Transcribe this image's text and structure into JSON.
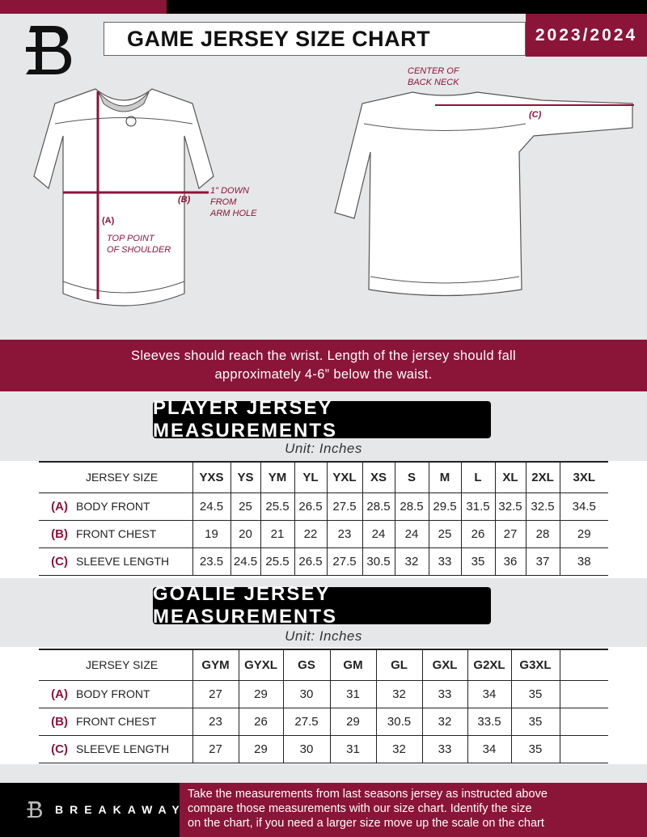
{
  "header": {
    "title": "GAME JERSEY SIZE CHART",
    "season": "2023/2024"
  },
  "diagram": {
    "front": {
      "a_label": "(A)",
      "a_note": [
        "TOP POINT",
        "OF SHOULDER"
      ],
      "b_label": "(B)",
      "b_note": [
        "1\" DOWN",
        "FROM",
        "ARM HOLE"
      ]
    },
    "back": {
      "c_label": "(C)",
      "c_note": [
        "CENTER OF",
        "BACK NECK"
      ]
    }
  },
  "instruction": [
    "Sleeves should reach the wrist. Length of the jersey should fall",
    "approximately 4-6” below the waist."
  ],
  "player": {
    "title": "PLAYER JERSEY MEASUREMENTS",
    "unit": "Unit: Inches",
    "header_label": "JERSEY SIZE",
    "sizes": [
      "YXS",
      "YS",
      "YM",
      "YL",
      "YXL",
      "XS",
      "S",
      "M",
      "L",
      "XL",
      "2XL",
      "3XL"
    ],
    "rows": [
      {
        "letter": "(A)",
        "label": "BODY FRONT",
        "values": [
          "24.5",
          "25",
          "25.5",
          "26.5",
          "27.5",
          "28.5",
          "28.5",
          "29.5",
          "31.5",
          "32.5",
          "32.5",
          "34.5"
        ]
      },
      {
        "letter": "(B)",
        "label": "FRONT CHEST",
        "values": [
          "19",
          "20",
          "21",
          "22",
          "23",
          "24",
          "24",
          "25",
          "26",
          "27",
          "28",
          "29"
        ]
      },
      {
        "letter": "(C)",
        "label": "SLEEVE LENGTH",
        "values": [
          "23.5",
          "24.5",
          "25.5",
          "26.5",
          "27.5",
          "30.5",
          "32",
          "33",
          "35",
          "36",
          "37",
          "38"
        ]
      }
    ]
  },
  "goalie": {
    "title": "GOALIE JERSEY MEASUREMENTS",
    "unit": "Unit: Inches",
    "header_label": "JERSEY SIZE",
    "sizes": [
      "GYM",
      "GYXL",
      "GS",
      "GM",
      "GL",
      "GXL",
      "G2XL",
      "G3XL",
      ""
    ],
    "rows": [
      {
        "letter": "(A)",
        "label": "BODY FRONT",
        "values": [
          "27",
          "29",
          "30",
          "31",
          "32",
          "33",
          "34",
          "35",
          ""
        ]
      },
      {
        "letter": "(B)",
        "label": "FRONT CHEST",
        "values": [
          "23",
          "26",
          "27.5",
          "29",
          "30.5",
          "32",
          "33.5",
          "35",
          ""
        ]
      },
      {
        "letter": "(C)",
        "label": "SLEEVE LENGTH",
        "values": [
          "27",
          "29",
          "30",
          "31",
          "32",
          "33",
          "34",
          "35",
          ""
        ]
      }
    ]
  },
  "footer": {
    "brand": "BREAKAWAY",
    "text": [
      "Take the measurements from last seasons jersey as instructed above",
      "compare those measurements  with our size chart. Identify the size",
      "on the chart, if you need a larger size move up the scale on the chart"
    ]
  },
  "colors": {
    "accent": "#8a1538",
    "dark": "#000000",
    "background": "#e6e7e8"
  }
}
